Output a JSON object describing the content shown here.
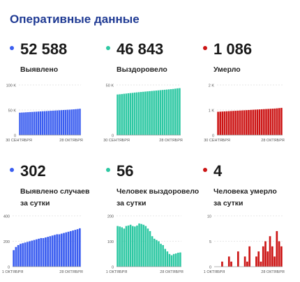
{
  "page_title": "Оперативные данные",
  "stats": [
    {
      "value": "52 588",
      "label": [
        "Выявлено"
      ],
      "color": "#3b5ef0"
    },
    {
      "value": "46 843",
      "label": [
        "Выздоровело"
      ],
      "color": "#2ec8a3"
    },
    {
      "value": "1 086",
      "label": [
        "Умерло"
      ],
      "color": "#cc1515"
    },
    {
      "value": "302",
      "label": [
        "Выявлено случаев",
        "за сутки"
      ],
      "color": "#3b5ef0"
    },
    {
      "value": "56",
      "label": [
        "Человек выздоровело",
        "за сутки"
      ],
      "color": "#2ec8a3"
    },
    {
      "value": "4",
      "label": [
        "Человека умерло",
        "за сутки"
      ],
      "color": "#cc1515"
    }
  ],
  "chart_data": [
    {
      "type": "bar",
      "xlabels": [
        "30 СЕНТЯБРЯ",
        "28 ОКТЯБРЯ"
      ],
      "yticks": [
        {
          "v": 0,
          "t": "0"
        },
        {
          "v": 50,
          "t": "50 K"
        },
        {
          "v": 100,
          "t": "100 K"
        }
      ],
      "ylim": [
        0,
        100
      ],
      "color": "#3b5ef0",
      "values": [
        44.7,
        45.0,
        45.2,
        45.5,
        45.7,
        46.0,
        46.2,
        46.5,
        46.7,
        47.0,
        47.2,
        47.5,
        47.7,
        48.0,
        48.2,
        48.5,
        48.7,
        49.0,
        49.2,
        49.5,
        49.7,
        50.0,
        50.2,
        50.5,
        50.7,
        51.0,
        51.3,
        51.7,
        52.1,
        52.6
      ]
    },
    {
      "type": "bar",
      "xlabels": [
        "30 СЕНТЯБРЯ",
        "28 ОКТЯБРЯ"
      ],
      "yticks": [
        {
          "v": 0,
          "t": "0"
        },
        {
          "v": 50,
          "t": "50 K"
        }
      ],
      "ylim": [
        0,
        50
      ],
      "color": "#2ec8a3",
      "values": [
        40.5,
        40.7,
        40.9,
        41.2,
        41.4,
        41.7,
        41.9,
        42.1,
        42.4,
        42.6,
        42.8,
        43.0,
        43.2,
        43.4,
        43.6,
        43.8,
        44.0,
        44.2,
        44.4,
        44.6,
        44.8,
        45.0,
        45.2,
        45.4,
        45.6,
        45.8,
        46.0,
        46.3,
        46.6,
        46.8
      ]
    },
    {
      "type": "bar",
      "xlabels": [
        "30 СЕНТЯБРЯ",
        "28 ОКТЯБРЯ"
      ],
      "yticks": [
        {
          "v": 0,
          "t": "0"
        },
        {
          "v": 1,
          "t": "1 K"
        },
        {
          "v": 2,
          "t": "2 K"
        }
      ],
      "ylim": [
        0,
        2
      ],
      "color": "#cc1515",
      "values": [
        0.93,
        0.935,
        0.94,
        0.945,
        0.95,
        0.955,
        0.96,
        0.965,
        0.97,
        0.975,
        0.98,
        0.985,
        0.99,
        0.995,
        1.0,
        1.005,
        1.01,
        1.015,
        1.02,
        1.025,
        1.03,
        1.035,
        1.04,
        1.045,
        1.05,
        1.055,
        1.06,
        1.068,
        1.077,
        1.086
      ]
    },
    {
      "type": "bar",
      "xlabels": [
        "1 ОКТЯБРЯ",
        "28 ОКТЯБРЯ"
      ],
      "yticks": [
        {
          "v": 0,
          "t": "0"
        },
        {
          "v": 200,
          "t": "200"
        },
        {
          "v": 400,
          "t": "400"
        }
      ],
      "ylim": [
        0,
        400
      ],
      "color": "#3b5ef0",
      "values": [
        130,
        155,
        170,
        180,
        185,
        190,
        195,
        200,
        205,
        210,
        215,
        220,
        225,
        225,
        230,
        235,
        240,
        245,
        250,
        255,
        255,
        260,
        265,
        270,
        275,
        280,
        285,
        290,
        295,
        302
      ]
    },
    {
      "type": "bar",
      "xlabels": [
        "1 ОКТЯБРЯ",
        "28 ОКТЯБРЯ"
      ],
      "yticks": [
        {
          "v": 0,
          "t": "0"
        },
        {
          "v": 100,
          "t": "100"
        },
        {
          "v": 200,
          "t": "200"
        }
      ],
      "ylim": [
        0,
        200
      ],
      "color": "#2ec8a3",
      "values": [
        160,
        158,
        155,
        150,
        160,
        162,
        165,
        160,
        158,
        162,
        170,
        168,
        165,
        160,
        150,
        140,
        120,
        110,
        105,
        100,
        90,
        85,
        70,
        60,
        50,
        45,
        50,
        52,
        55,
        56
      ]
    },
    {
      "type": "bar",
      "xlabels": [
        "1 ОКТЯБРЯ",
        "28 ОКТЯБРЯ"
      ],
      "yticks": [
        {
          "v": 0,
          "t": "0"
        },
        {
          "v": 5,
          "t": "5"
        },
        {
          "v": 10,
          "t": "10"
        }
      ],
      "ylim": [
        0,
        10
      ],
      "color": "#cc1515",
      "values": [
        0,
        0,
        0,
        1,
        0,
        0,
        2,
        1,
        0,
        0,
        3,
        0,
        0,
        2,
        1,
        4,
        0,
        0,
        2,
        3,
        1,
        4,
        5,
        3,
        6,
        4,
        2,
        7,
        5,
        4
      ]
    }
  ]
}
